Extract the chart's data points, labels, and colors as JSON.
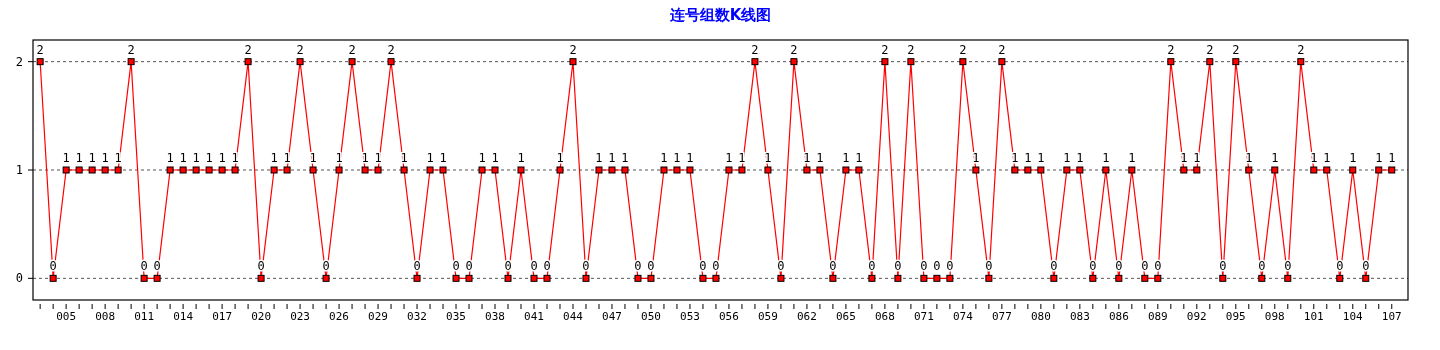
{
  "chart_data": {
    "type": "line",
    "title": "连号组数K线图",
    "categories": [
      null,
      null,
      "005",
      null,
      null,
      "008",
      null,
      null,
      "011",
      null,
      null,
      "014",
      null,
      null,
      "017",
      null,
      null,
      "020",
      null,
      null,
      "023",
      null,
      null,
      "026",
      null,
      null,
      "029",
      null,
      null,
      "032",
      null,
      null,
      "035",
      null,
      null,
      "038",
      null,
      null,
      "041",
      null,
      null,
      "044",
      null,
      null,
      "047",
      null,
      null,
      "050",
      null,
      null,
      "053",
      null,
      null,
      "056",
      null,
      null,
      "059",
      null,
      null,
      "062",
      null,
      null,
      "065",
      null,
      null,
      "068",
      null,
      null,
      "071",
      null,
      null,
      "074",
      null,
      null,
      "077",
      null,
      null,
      "080",
      null,
      null,
      "083",
      null,
      null,
      "086",
      null,
      null,
      "089",
      null,
      null,
      "092",
      null,
      null,
      "095",
      null,
      null,
      "098",
      null,
      null,
      "101",
      null,
      null,
      "104",
      null,
      null,
      "107"
    ],
    "series": [
      {
        "color": "#ff0000",
        "values": [
          2,
          0,
          1,
          1,
          1,
          1,
          1,
          2,
          0,
          0,
          1,
          1,
          1,
          1,
          1,
          1,
          2,
          0,
          1,
          1,
          2,
          1,
          0,
          1,
          2,
          1,
          1,
          2,
          1,
          0,
          1,
          1,
          0,
          0,
          1,
          1,
          0,
          1,
          0,
          0,
          1,
          2,
          0,
          1,
          1,
          1,
          0,
          0,
          1,
          1,
          1,
          0,
          0,
          1,
          1,
          2,
          1,
          0,
          2,
          1,
          1,
          0,
          1,
          1,
          0,
          2,
          0,
          2,
          0,
          0,
          0,
          2,
          1,
          0,
          2,
          1,
          1,
          1,
          0,
          1,
          1,
          0,
          1,
          0,
          1,
          0,
          0,
          2,
          1,
          1,
          2,
          0,
          2,
          1,
          0,
          1,
          0,
          2,
          1,
          1,
          0,
          1,
          0,
          1,
          1
        ]
      }
    ],
    "ylim": [
      -0.2,
      2.2
    ],
    "yticks": [
      0,
      1,
      2
    ],
    "grid": "y",
    "marker": "square",
    "line_style": "solid",
    "data_labels": true
  }
}
